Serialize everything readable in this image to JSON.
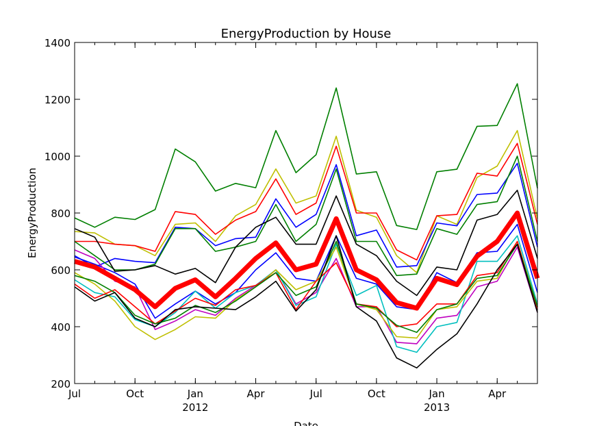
{
  "chart_data": {
    "type": "line",
    "title": "EnergyProduction by House",
    "xlabel": "Date",
    "ylabel": "EnergyProduction",
    "ylim": [
      200,
      1400
    ],
    "yticks": [
      "200",
      "400",
      "600",
      "800",
      "1000",
      "1200",
      "1400"
    ],
    "x": [
      "2011-07",
      "2011-08",
      "2011-09",
      "2011-10",
      "2011-11",
      "2011-12",
      "2012-01",
      "2012-02",
      "2012-03",
      "2012-04",
      "2012-05",
      "2012-06",
      "2012-07",
      "2012-08",
      "2012-09",
      "2012-10",
      "2012-11",
      "2012-12",
      "2013-01",
      "2013-02",
      "2013-03",
      "2013-04",
      "2013-05",
      "2013-06"
    ],
    "xticks": [
      {
        "date": "2011-07",
        "label": "Jul",
        "year": ""
      },
      {
        "date": "2011-10",
        "label": "Oct",
        "year": ""
      },
      {
        "date": "2012-01",
        "label": "Jan",
        "year": "2012"
      },
      {
        "date": "2012-04",
        "label": "Apr",
        "year": ""
      },
      {
        "date": "2012-07",
        "label": "Jul",
        "year": ""
      },
      {
        "date": "2012-10",
        "label": "Oct",
        "year": ""
      },
      {
        "date": "2013-01",
        "label": "Jan",
        "year": "2013"
      },
      {
        "date": "2013-04",
        "label": "Apr",
        "year": ""
      }
    ],
    "grid": false,
    "legend": "none",
    "series": [
      {
        "color": "#007f00",
        "values": [
          783,
          750,
          785,
          777,
          812,
          1025,
          980,
          877,
          904,
          889,
          1090,
          942,
          1005,
          1240,
          937,
          945,
          756,
          742,
          945,
          954,
          1105,
          1108,
          1255,
          887
        ]
      },
      {
        "color": "#bfbf00",
        "values": [
          735,
          730,
          690,
          685,
          650,
          760,
          765,
          700,
          790,
          830,
          955,
          835,
          860,
          1070,
          810,
          785,
          650,
          590,
          790,
          760,
          925,
          965,
          1090,
          780
        ]
      },
      {
        "color": "#ff0000",
        "values": [
          700,
          700,
          690,
          685,
          665,
          805,
          795,
          725,
          775,
          805,
          920,
          795,
          835,
          1035,
          800,
          800,
          670,
          635,
          790,
          795,
          940,
          930,
          1045,
          760
        ]
      },
      {
        "color": "#0000ff",
        "values": [
          650,
          610,
          640,
          630,
          625,
          750,
          745,
          685,
          710,
          715,
          850,
          750,
          795,
          970,
          720,
          740,
          610,
          615,
          765,
          755,
          865,
          870,
          975,
          680
        ]
      },
      {
        "color": "#007f00",
        "values": [
          700,
          650,
          600,
          600,
          620,
          745,
          745,
          665,
          680,
          700,
          830,
          700,
          760,
          955,
          700,
          700,
          580,
          585,
          745,
          725,
          830,
          840,
          1000,
          700
        ]
      },
      {
        "color": "#000000",
        "values": [
          745,
          715,
          595,
          600,
          615,
          585,
          605,
          555,
          680,
          750,
          785,
          690,
          690,
          860,
          690,
          650,
          560,
          510,
          610,
          600,
          775,
          795,
          880,
          640
        ]
      },
      {
        "color": "#0000ff",
        "values": [
          645,
          620,
          590,
          550,
          430,
          480,
          525,
          480,
          520,
          600,
          660,
          570,
          560,
          720,
          570,
          550,
          470,
          460,
          590,
          555,
          660,
          665,
          760,
          520
        ]
      },
      {
        "color": "#bf00bf",
        "values": [
          670,
          640,
          560,
          540,
          390,
          420,
          460,
          440,
          500,
          545,
          600,
          480,
          520,
          640,
          470,
          470,
          345,
          340,
          430,
          440,
          540,
          560,
          680,
          450
        ]
      },
      {
        "color": "#00bfbf",
        "values": [
          565,
          520,
          505,
          425,
          400,
          450,
          525,
          465,
          520,
          545,
          600,
          475,
          505,
          690,
          510,
          545,
          330,
          310,
          400,
          415,
          630,
          630,
          720,
          480
        ]
      },
      {
        "color": "#bfbf00",
        "values": [
          590,
          550,
          490,
          400,
          355,
          390,
          435,
          430,
          495,
          540,
          600,
          530,
          560,
          680,
          480,
          460,
          365,
          360,
          460,
          470,
          560,
          570,
          700,
          470
        ]
      },
      {
        "color": "#ff0000",
        "values": [
          550,
          500,
          530,
          470,
          410,
          455,
          500,
          475,
          530,
          545,
          590,
          460,
          560,
          625,
          480,
          470,
          400,
          410,
          480,
          480,
          580,
          590,
          700,
          460
        ]
      },
      {
        "color": "#007f00",
        "values": [
          580,
          560,
          520,
          440,
          410,
          430,
          475,
          450,
          490,
          540,
          590,
          510,
          540,
          700,
          480,
          465,
          405,
          380,
          460,
          480,
          570,
          580,
          690,
          470
        ]
      },
      {
        "color": "#000000",
        "values": [
          540,
          490,
          520,
          430,
          400,
          460,
          470,
          465,
          460,
          505,
          560,
          455,
          530,
          720,
          470,
          420,
          290,
          255,
          320,
          375,
          480,
          600,
          690,
          450
        ]
      },
      {
        "color": "#ff0000",
        "thick": true,
        "values": [
          630,
          610,
          570,
          530,
          470,
          535,
          565,
          505,
          570,
          640,
          695,
          600,
          620,
          780,
          600,
          565,
          485,
          465,
          570,
          548,
          648,
          700,
          800,
          570
        ]
      }
    ]
  }
}
